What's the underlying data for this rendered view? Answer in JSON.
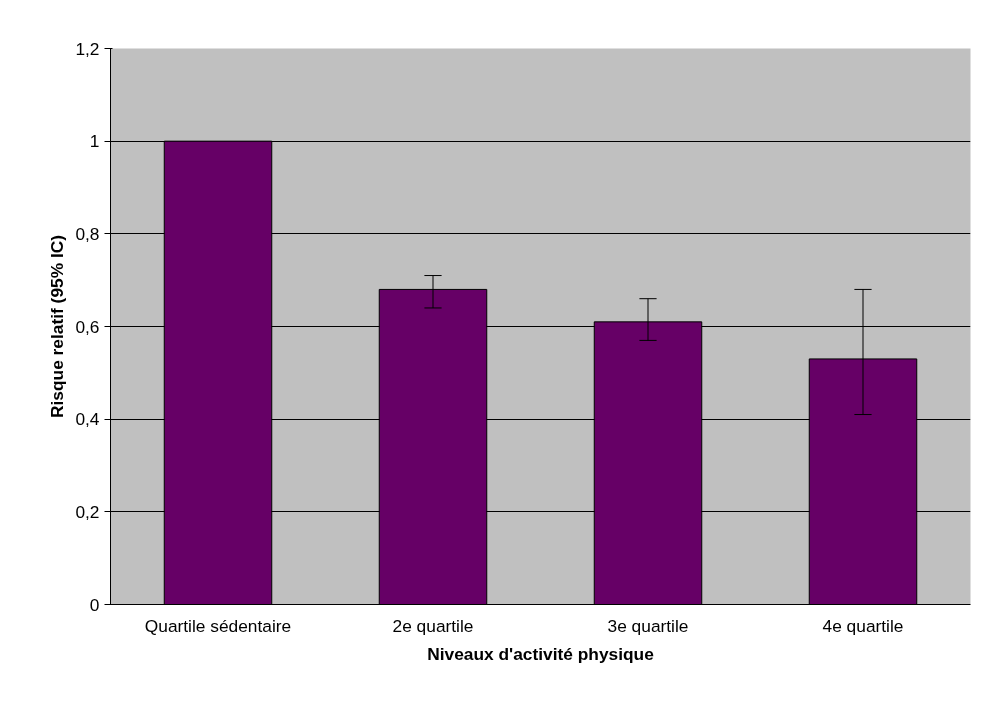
{
  "chart_data": {
    "type": "bar",
    "xlabel": "Niveaux d'activité physique",
    "ylabel": "Risque relatif (95% IC)",
    "categories": [
      "Quartile sédentaire",
      "2e quartile",
      "3e quartile",
      "4e quartile"
    ],
    "values": [
      1,
      0.68,
      0.61,
      0.53
    ],
    "errors": [
      null,
      [
        0.64,
        0.71
      ],
      [
        0.57,
        0.66
      ],
      [
        0.41,
        0.68
      ]
    ],
    "color": "#660066",
    "ylim": [
      0,
      1.2
    ],
    "yticks": [
      {
        "value": 0,
        "label": "0"
      },
      {
        "value": 0.2,
        "label": "0,2"
      },
      {
        "value": 0.4,
        "label": "0,4"
      },
      {
        "value": 0.6,
        "label": "0,6"
      },
      {
        "value": 0.8,
        "label": "0,8"
      },
      {
        "value": 1,
        "label": "1"
      },
      {
        "value": 1.2,
        "label": "1,2"
      }
    ],
    "grid": "y"
  }
}
